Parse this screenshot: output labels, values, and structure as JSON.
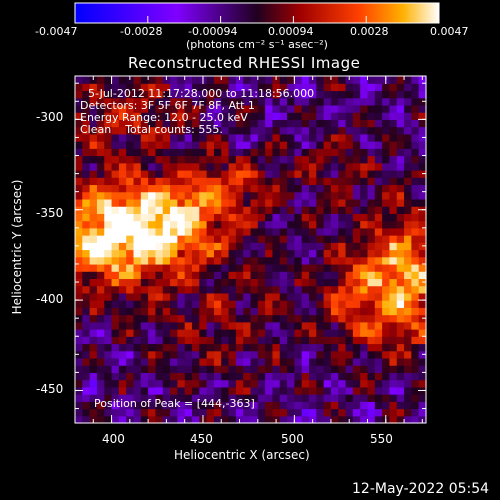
{
  "colorbar": {
    "ticks": [
      "-0.0047",
      "-0.0028",
      "-0.00094",
      "0.00094",
      "0.0028",
      "0.0047"
    ],
    "unit_label": "(photons cm⁻² s⁻¹ asec⁻²)",
    "colormap": [
      "#0000ff",
      "#8000ff",
      "#200020",
      "#a00000",
      "#ff4000",
      "#ffb000",
      "#ffffff"
    ]
  },
  "title": "Reconstructed RHESSI Image",
  "annotations": {
    "time_range": "5-Jul-2012 11:17:28.000 to 11:18:56.000",
    "detectors": "Detectors: 3F 5F 6F 7F 8F, Att 1",
    "energy": "Energy Range: 12.0 - 25.0 keV",
    "clean": "Clean    Total counts: 555.",
    "peak": "Position of Peak = [444,-363]"
  },
  "footer_date": "12-May-2022 05:54",
  "chart_data": {
    "type": "heatmap",
    "title": "Reconstructed RHESSI Image",
    "xlabel": "Heliocentric X (arcsec)",
    "ylabel": "Heliocentric Y (arcsec)",
    "xlim": [
      380,
      572
    ],
    "ylim": [
      -468,
      -276
    ],
    "x_ticks": [
      400,
      450,
      500,
      550
    ],
    "y_ticks": [
      -300,
      -350,
      -400,
      -450
    ],
    "x_tick_labels": [
      "400",
      "450",
      "500",
      "550"
    ],
    "y_tick_labels": [
      "-300",
      "-350",
      "-400",
      "-450"
    ],
    "value_range": [
      -0.0047,
      0.0047
    ],
    "peak_position": [
      444,
      -363
    ],
    "sources": [
      {
        "x": 395,
        "y": -365,
        "sx": 20,
        "sy": 22,
        "amp": 0.0047
      },
      {
        "x": 432,
        "y": -360,
        "sx": 20,
        "sy": 18,
        "amp": 0.0044
      },
      {
        "x": 465,
        "y": -340,
        "sx": 18,
        "sy": 14,
        "amp": 0.002
      },
      {
        "x": 560,
        "y": -390,
        "sx": 16,
        "sy": 26,
        "amp": 0.0042
      },
      {
        "x": 530,
        "y": -400,
        "sx": 14,
        "sy": 20,
        "amp": 0.0022
      },
      {
        "x": 405,
        "y": -300,
        "sx": 26,
        "sy": 14,
        "amp": 0.0018
      },
      {
        "x": 460,
        "y": -415,
        "sx": 26,
        "sy": 22,
        "amp": 0.0012
      },
      {
        "x": 520,
        "y": -330,
        "sx": 16,
        "sy": 14,
        "amp": 0.0011
      }
    ]
  }
}
